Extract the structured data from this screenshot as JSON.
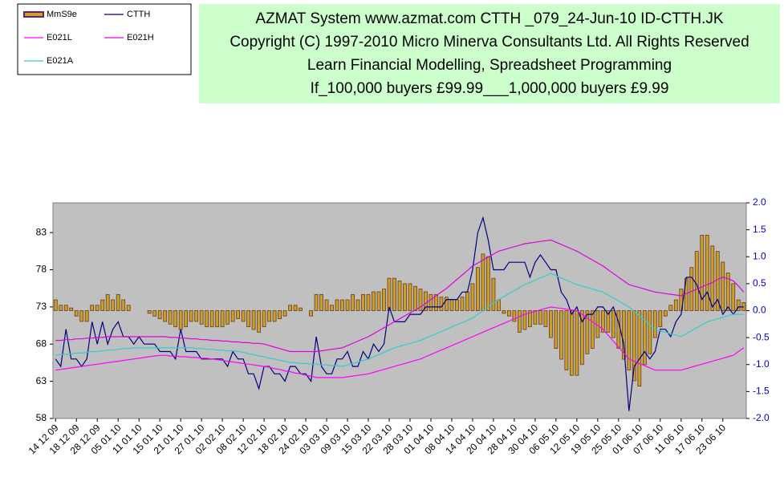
{
  "chart_data": {
    "type": "combo",
    "title_lines": [
      "AZMAT System  www.azmat.com CTTH     _079_24-Jun-10 ID-CTTH.JK",
      "Copyright (C) 1997-2010 Micro Minerva Consultants Ltd. All Rights Reserved",
      "Learn Financial Modelling, Spreadsheet Programming",
      "If_100,000 buyers £99.99___1,000,000 buyers £9.99"
    ],
    "legend": "top-left",
    "categories": [
      "14 12 09",
      null,
      null,
      null,
      "18 12 09",
      null,
      null,
      null,
      "28 12 09",
      null,
      null,
      null,
      "05 01 10",
      null,
      null,
      null,
      "11 01 10",
      null,
      null,
      null,
      "15 01 10",
      null,
      null,
      null,
      "21 01 10",
      null,
      null,
      null,
      "27 01 10",
      null,
      null,
      null,
      "02 02 10",
      null,
      null,
      null,
      "08 02 10",
      null,
      null,
      null,
      "12 02 10",
      null,
      null,
      null,
      "18 02 10",
      null,
      null,
      null,
      "24 02 10",
      null,
      null,
      null,
      "03 03 10",
      null,
      null,
      null,
      "09 03 10",
      null,
      null,
      null,
      "15 03 10",
      null,
      null,
      null,
      "22 03 10",
      null,
      null,
      null,
      "28 03 10",
      null,
      null,
      null,
      "01 04 10",
      null,
      null,
      null,
      "08 04 10",
      null,
      null,
      null,
      "14 04 10",
      null,
      null,
      null,
      "20 04 10",
      null,
      null,
      null,
      "28 04 10",
      null,
      null,
      null,
      "30 04 10",
      null,
      null,
      null,
      "06 05 10",
      null,
      null,
      null,
      "12 05 10",
      null,
      null,
      null,
      "19 05 10",
      null,
      null,
      null,
      "25 05 10",
      null,
      null,
      null,
      "01 06 10",
      null,
      null,
      null,
      "07 06 10",
      null,
      null,
      null,
      "11 06 10",
      null,
      null,
      null,
      "17 06 10",
      null,
      null,
      null,
      "23 06 10",
      null,
      null,
      null,
      null
    ],
    "ylim": [
      58,
      87
    ],
    "yticks": [
      58,
      63,
      68,
      73,
      78,
      83
    ],
    "y2lim": [
      -2,
      2
    ],
    "y2ticks": [
      {
        "value": 2,
        "label": "2.0"
      },
      1.5,
      {
        "value": 1,
        "label": "1.0"
      },
      0.5,
      {
        "value": 0,
        "label": "0.0"
      },
      -0.5,
      {
        "value": -1,
        "label": "-1.0"
      },
      -1.5,
      {
        "value": -2,
        "label": "-2.0"
      }
    ],
    "plot_background": "#c0c0c0",
    "series": [
      {
        "name": "MmS9e",
        "type": "bar",
        "axis": "y2",
        "color": "#c8a02a",
        "values": [
          0.2,
          0.1,
          0.1,
          0.05,
          -0.1,
          -0.2,
          -0.2,
          0.1,
          0.1,
          0.2,
          0.3,
          0.2,
          0.3,
          0.2,
          0.1,
          0,
          0,
          0,
          -0.05,
          -0.1,
          -0.15,
          -0.2,
          -0.25,
          -0.3,
          -0.35,
          -0.3,
          -0.2,
          -0.2,
          -0.25,
          -0.3,
          -0.3,
          -0.3,
          -0.3,
          -0.25,
          -0.2,
          -0.15,
          -0.2,
          -0.3,
          -0.35,
          -0.4,
          -0.3,
          -0.2,
          -0.2,
          -0.15,
          -0.1,
          0.1,
          0.1,
          0.05,
          0,
          -0.1,
          0.3,
          0.3,
          0.2,
          0.1,
          0.2,
          0.2,
          0.2,
          0.3,
          0.2,
          0.3,
          0.3,
          0.35,
          0.35,
          0.4,
          0.6,
          0.6,
          0.55,
          0.5,
          0.5,
          0.45,
          0.4,
          0.35,
          0.3,
          0.3,
          0.25,
          0.25,
          0.2,
          0.2,
          0.25,
          0.35,
          0.5,
          0.8,
          1.05,
          1.0,
          0.6,
          0.2,
          -0.05,
          -0.1,
          -0.2,
          -0.4,
          -0.35,
          -0.3,
          -0.25,
          -0.25,
          -0.3,
          -0.5,
          -0.7,
          -0.9,
          -1.1,
          -1.2,
          -1.2,
          -1.0,
          -0.8,
          -0.7,
          -0.5,
          -0.4,
          -0.4,
          -0.5,
          -0.7,
          -0.9,
          -1.1,
          -1.3,
          -1.4,
          -1.0,
          -0.8,
          -0.5,
          -0.3,
          -0.1,
          0.1,
          0.2,
          0.4,
          0.6,
          0.8,
          1.1,
          1.4,
          1.4,
          1.2,
          1.1,
          0.9,
          0.7,
          0.5,
          0.2,
          0.15
        ]
      },
      {
        "name": "CTTH",
        "type": "line",
        "color": "#000080",
        "values": [
          66,
          65,
          70,
          66,
          66,
          65,
          66,
          71,
          68,
          71,
          68,
          70,
          71,
          69,
          69,
          68,
          69,
          68,
          68,
          68,
          67,
          67,
          67,
          66,
          70,
          67,
          67,
          67,
          66,
          66,
          66,
          66,
          66,
          65,
          67,
          66,
          66,
          64,
          64,
          62,
          65,
          65,
          64,
          64,
          63,
          65,
          65,
          64,
          64,
          63,
          69,
          65,
          64,
          64,
          66,
          66,
          67,
          65,
          65,
          67,
          66,
          68,
          67,
          68,
          73,
          71,
          71,
          71,
          72,
          72,
          72,
          73,
          73,
          73,
          73,
          74,
          74,
          74,
          75,
          75,
          78,
          83,
          85,
          82,
          78,
          78,
          78,
          79,
          79,
          79,
          79,
          77,
          79,
          80,
          79,
          78,
          78,
          75,
          74,
          72,
          73,
          71,
          72,
          72,
          73,
          73,
          72,
          73,
          71,
          68,
          59,
          65,
          66,
          67,
          66,
          67,
          70,
          70,
          69,
          71,
          72,
          77,
          77,
          76,
          74,
          75,
          73,
          74,
          72,
          73,
          72,
          73,
          73
        ]
      },
      {
        "name": "E021L",
        "type": "line",
        "color": "#ff00ff",
        "values": [
          64.5,
          64.6,
          64.7,
          64.8,
          64.9,
          65,
          65.1,
          65.2,
          65.3,
          65.4,
          65.5,
          65.6,
          65.7,
          65.8,
          65.9,
          66,
          66.1,
          66.2,
          66.3,
          66.4,
          66.5,
          66.5,
          66.4,
          66.4,
          66.3,
          66.3,
          66.2,
          66.2,
          66.1,
          66.1,
          66,
          65.9,
          65.8,
          65.7,
          65.6,
          65.5,
          65.4,
          65.3,
          65.2,
          65.1,
          65,
          64.9,
          64.7,
          64.6,
          64.4,
          64.3,
          64.1,
          64,
          63.8,
          63.7,
          63.5,
          63.5,
          63.5,
          63.5,
          63.5,
          63.5,
          63.6,
          63.7,
          63.8,
          63.9,
          64,
          64.2,
          64.4,
          64.6,
          64.8,
          65,
          65.2,
          65.4,
          65.6,
          65.8,
          66,
          66.3,
          66.6,
          66.9,
          67.2,
          67.5,
          67.8,
          68.1,
          68.4,
          68.7,
          69,
          69.3,
          69.6,
          69.9,
          70.2,
          70.5,
          70.8,
          71.1,
          71.4,
          71.7,
          72,
          72.2,
          72.4,
          72.6,
          72.8,
          73,
          72.9,
          72.8,
          72.7,
          72.6,
          72.5,
          72,
          71.5,
          71,
          70.5,
          70,
          69.2,
          68.4,
          67.6,
          66.8,
          66,
          65.7,
          65.4,
          65.1,
          64.8,
          64.5,
          64.5,
          64.5,
          64.5,
          64.5,
          64.5,
          64.7,
          64.9,
          65.1,
          65.3,
          65.5,
          65.7,
          65.9,
          66.1,
          66.3,
          66.5,
          67,
          67.5
        ]
      },
      {
        "name": "E021H",
        "type": "line",
        "color": "#e000e0",
        "values": [
          68.5,
          68.5,
          68.6,
          68.6,
          68.7,
          68.7,
          68.8,
          68.8,
          68.9,
          68.9,
          69,
          69,
          69,
          69,
          69,
          69,
          69,
          69,
          69,
          69,
          69,
          69,
          68.9,
          68.9,
          68.8,
          68.8,
          68.7,
          68.7,
          68.6,
          68.6,
          68.5,
          68.5,
          68.4,
          68.4,
          68.3,
          68.3,
          68.2,
          68.2,
          68.1,
          68.1,
          68,
          67.8,
          67.6,
          67.4,
          67.2,
          67,
          67,
          67,
          67,
          67,
          67,
          67.1,
          67.2,
          67.3,
          67.4,
          67.5,
          67.8,
          68.1,
          68.4,
          68.7,
          69,
          69.4,
          69.8,
          70.2,
          70.6,
          71,
          71.4,
          71.8,
          72.2,
          72.6,
          73,
          73.5,
          74,
          74.5,
          75,
          75.5,
          76.1,
          76.7,
          77.3,
          77.9,
          78.5,
          78.9,
          79.3,
          79.7,
          80.1,
          80.5,
          80.7,
          80.9,
          81.1,
          81.3,
          81.5,
          81.6,
          81.7,
          81.8,
          81.9,
          82,
          81.7,
          81.4,
          81.1,
          80.8,
          80.5,
          80.1,
          79.7,
          79.3,
          78.9,
          78.5,
          78,
          77.5,
          77,
          76.5,
          76,
          75.8,
          75.6,
          75.4,
          75.2,
          75,
          74.9,
          74.8,
          74.7,
          74.6,
          74.5,
          74.8,
          75.1,
          75.4,
          75.7,
          76,
          76.3,
          76.7,
          77,
          76.8,
          76.5,
          75.8,
          75
        ]
      },
      {
        "name": "E021A",
        "type": "line",
        "color": "#33cccc",
        "values": [
          66.5,
          66.6,
          66.6,
          66.7,
          66.8,
          66.8,
          66.9,
          67,
          67,
          67.1,
          67.2,
          67.2,
          67.3,
          67.4,
          67.4,
          67.5,
          67.5,
          67.5,
          67.5,
          67.5,
          67.5,
          67.5,
          67.5,
          67.5,
          67.5,
          67.5,
          67.5,
          67.4,
          67.4,
          67.3,
          67.3,
          67.2,
          67.2,
          67.1,
          67.1,
          67,
          66.9,
          66.7,
          66.6,
          66.4,
          66.3,
          66.1,
          66,
          65.8,
          65.7,
          65.5,
          65.5,
          65.4,
          65.4,
          65.3,
          65.3,
          65.2,
          65.2,
          65.1,
          65.1,
          65,
          65.2,
          65.4,
          65.6,
          65.8,
          66,
          66.3,
          66.6,
          66.9,
          67.2,
          67.5,
          67.7,
          67.9,
          68.1,
          68.3,
          68.5,
          68.8,
          69.1,
          69.4,
          69.7,
          70,
          70.3,
          70.6,
          70.9,
          71.2,
          71.5,
          72,
          72.5,
          73,
          73.5,
          74,
          74.4,
          74.8,
          75.2,
          75.6,
          76,
          76.3,
          76.6,
          76.9,
          77.2,
          77.5,
          77.2,
          76.9,
          76.6,
          76.3,
          76,
          75.8,
          75.6,
          75.4,
          75.2,
          75,
          74.6,
          74.2,
          73.8,
          73.4,
          73,
          72.4,
          71.8,
          71.2,
          70.6,
          70,
          69.8,
          69.6,
          69.4,
          69.2,
          69,
          69.4,
          69.8,
          70.2,
          70.6,
          71,
          71.2,
          71.4,
          71.6,
          71.8,
          72,
          72,
          72
        ]
      }
    ]
  }
}
